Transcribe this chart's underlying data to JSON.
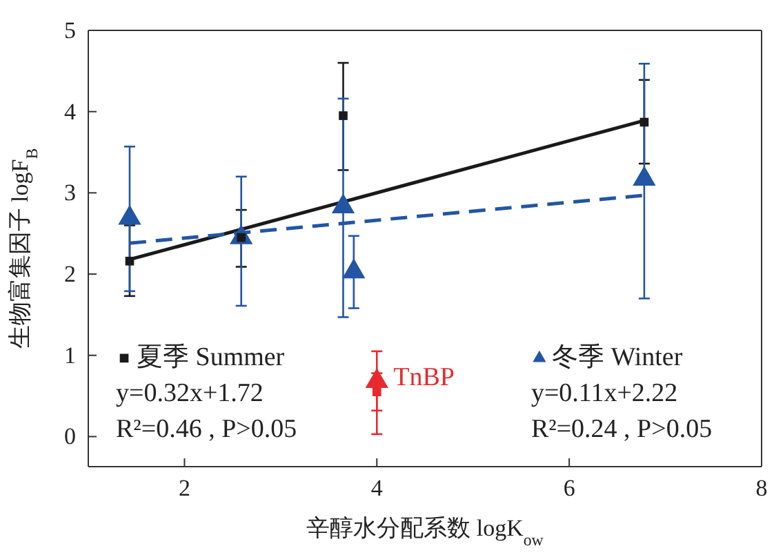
{
  "chart_data": {
    "type": "scatter",
    "xlabel": "辛醇水分配系数 logK$_{ow}$",
    "ylabel": "生物富集因子 logF$_{B}$",
    "xlim": [
      1,
      8
    ],
    "xticks": [
      {
        "value": 1,
        "label": null
      },
      2,
      4,
      6,
      8
    ],
    "ylim": [
      -0.37,
      5
    ],
    "yticks": [
      0,
      1,
      2,
      3,
      4,
      5
    ],
    "grid": false,
    "legend": "bottom",
    "series": [
      {
        "name": "夏季 Summer",
        "marker": "square",
        "color": "#1a1a1a",
        "x": [
          1.43,
          2.59,
          3.65,
          6.78
        ],
        "values": [
          2.16,
          2.45,
          3.95,
          3.87
        ],
        "errors": [
          [
            1.73,
            2.6
          ],
          [
            2.09,
            2.79
          ],
          [
            3.28,
            4.6
          ],
          [
            3.36,
            4.39
          ]
        ]
      },
      {
        "name": "冬季 Winter",
        "marker": "triangle",
        "color": "#2255a4",
        "x": [
          1.43,
          2.59,
          3.65,
          3.76,
          6.78
        ],
        "values": [
          2.69,
          2.45,
          2.83,
          2.03,
          3.17
        ],
        "errors": [
          [
            1.79,
            3.57
          ],
          [
            1.61,
            3.2
          ],
          [
            1.47,
            4.16
          ],
          [
            1.58,
            2.47
          ],
          [
            1.7,
            4.59
          ]
        ]
      },
      {
        "type": "line",
        "color": "#1a1a1a",
        "line_style": "solid",
        "marker": "none",
        "x": [
          1.43,
          6.78
        ],
        "values": [
          2.18,
          3.89
        ]
      },
      {
        "type": "line",
        "color": "#2255a4",
        "line_style": "dashed",
        "marker": "none",
        "x": [
          1.43,
          6.78
        ],
        "values": [
          2.38,
          2.97
        ]
      },
      {
        "name": "TnBP",
        "marker": "triangle",
        "color": "#e8292e",
        "x": [
          4.0
        ],
        "values": [
          0.68
        ],
        "errors": [
          [
            0.03,
            1.05
          ]
        ]
      },
      {
        "marker": "square",
        "color": "#e8292e",
        "x": [
          4.0
        ],
        "values": [
          0.55
        ],
        "errors": [
          [
            0.32,
            0.78
          ]
        ]
      }
    ],
    "annotations": [
      "y=0.32x+1.72",
      "R²=0.46 , P>0.05",
      "y=0.11x+2.22",
      "R²=0.24 , P>0.05"
    ]
  }
}
